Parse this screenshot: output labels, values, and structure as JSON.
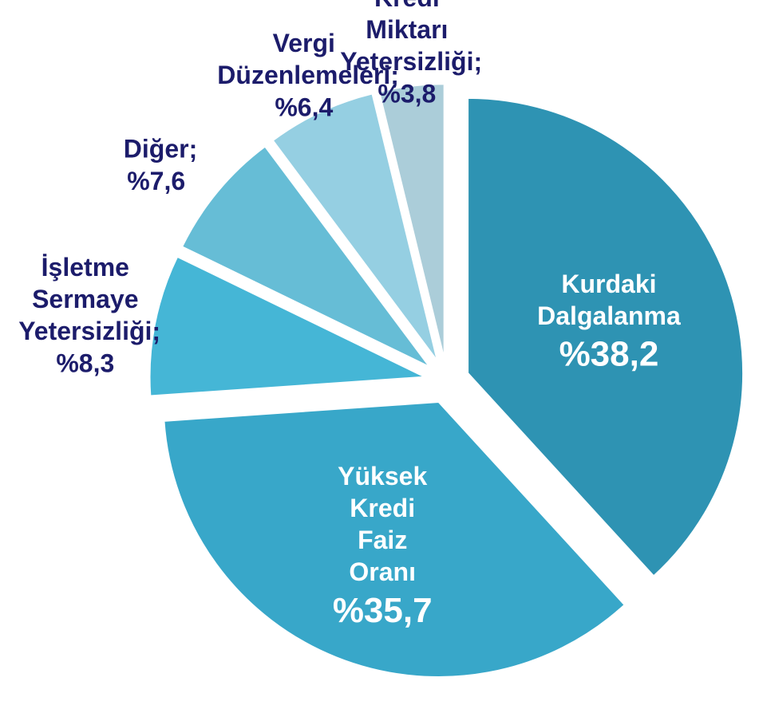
{
  "chart_data": {
    "type": "pie",
    "categories": [
      "Kurdaki Dalgalanma",
      "Yüksek Kredi Faiz Oranı",
      "İşletme Sermaye Yetersizliği",
      "Diğer",
      "Vergi Düzenlemeleri",
      "Kredi Miktarı Yetersizliği"
    ],
    "values": [
      38.2,
      35.7,
      8.3,
      7.6,
      6.4,
      3.8
    ],
    "value_labels": [
      "%38,2",
      "%35,7",
      "%8,3",
      "%7,6",
      "%6,4",
      "%3,8"
    ],
    "label_separator": ";",
    "colors": [
      "#2e93b3",
      "#38a7c9",
      "#45b6d6",
      "#66bdd6",
      "#95cfe2",
      "#abcdd9"
    ]
  }
}
